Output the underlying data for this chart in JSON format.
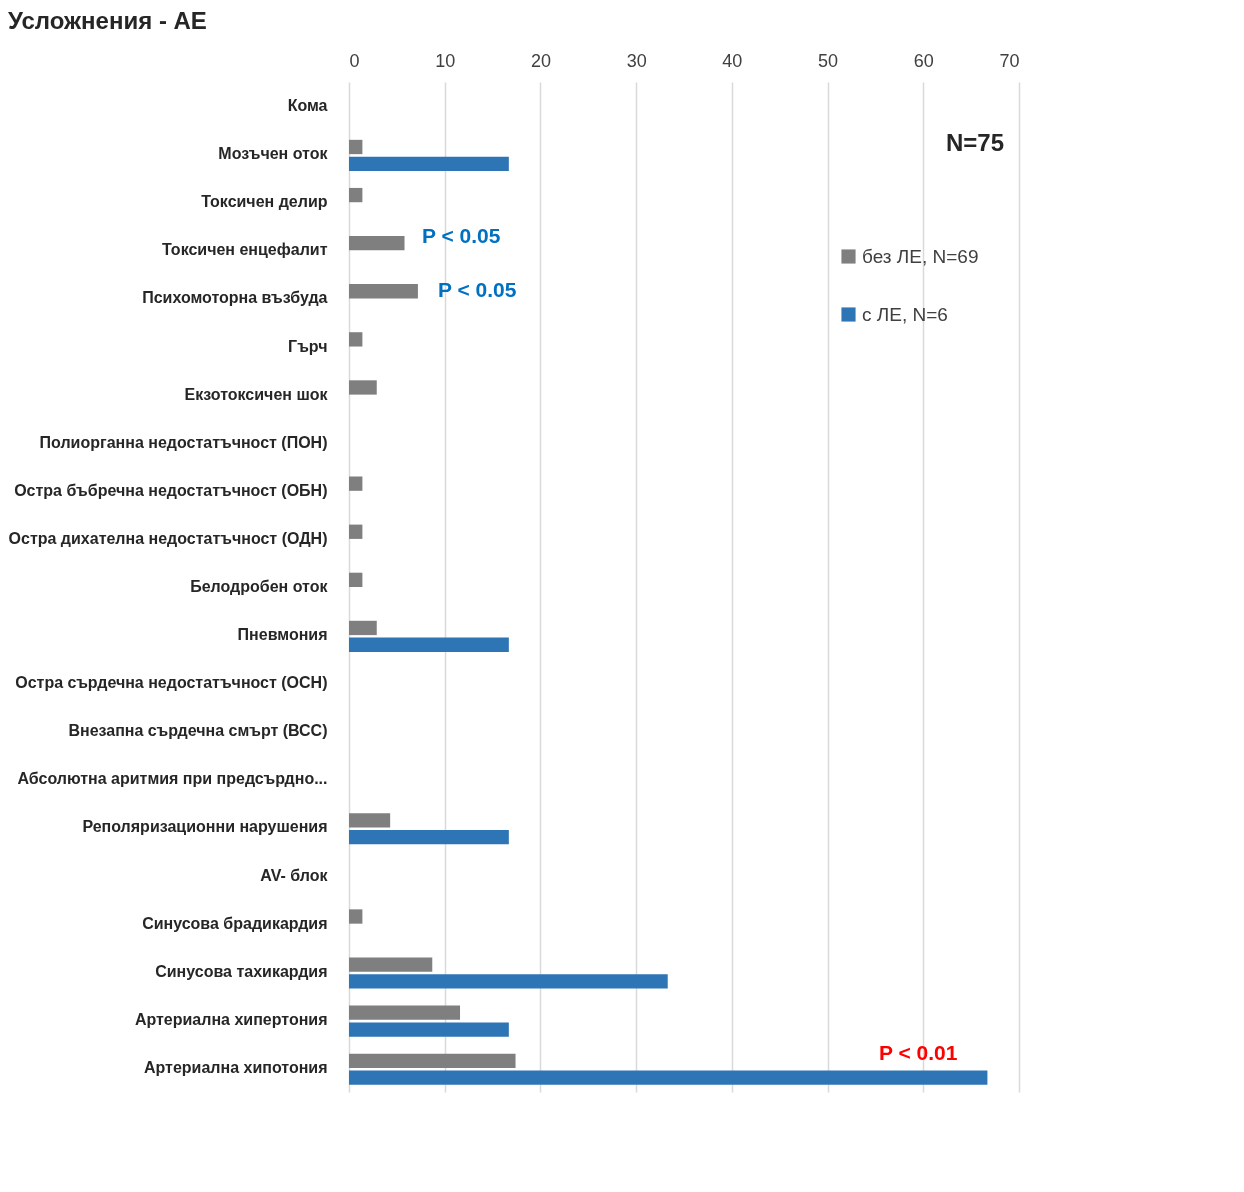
{
  "chart_data": {
    "type": "bar",
    "orientation": "horizontal",
    "title": "Усложнения - АЕ",
    "categories": [
      "Кома",
      "Мозъчен оток",
      "Токсичен делир",
      "Токсичен енцефалит",
      "Психомоторна възбуда",
      "Гърч",
      "Екзотоксичен шок",
      "Полиорганна недостатъчност (ПОН)",
      "Остра бъбречна недостатъчност (ОБН)",
      "Остра дихателна недостатъчност (ОДН)",
      "Белодробен оток",
      "Пневмония",
      "Остра сърдечна недостатъчност (ОСН)",
      "Внезапна сърдечна смърт (ВСС)",
      "Абсолютна аритмия при предсърдно...",
      "Реполяризационни нарушения",
      "AV- блок",
      "Синусова брадикардия",
      "Синусова тахикардия",
      "Артериална хипертония",
      "Артериална хипотония"
    ],
    "series": [
      {
        "name": "без ЛЕ, N=69",
        "color": "#7f7f7f",
        "values": [
          0,
          1.4,
          1.4,
          5.8,
          7.2,
          1.4,
          2.9,
          0,
          1.4,
          1.4,
          1.4,
          2.9,
          0,
          0,
          0,
          4.3,
          0,
          1.4,
          8.7,
          11.6,
          17.4
        ]
      },
      {
        "name": "с ЛЕ, N=6",
        "color": "#2e75b6",
        "values": [
          0,
          16.7,
          0,
          0,
          0,
          0,
          0,
          0,
          0,
          0,
          0,
          16.7,
          0,
          0,
          0,
          16.7,
          0,
          0,
          33.3,
          16.7,
          66.7
        ]
      }
    ],
    "xlim": [
      0,
      70
    ],
    "xticks": [
      0,
      10,
      20,
      30,
      40,
      50,
      60,
      70
    ],
    "grid": "x",
    "legend": "right",
    "annotations": [
      "N=75",
      "P < 0.05",
      "P < 0.05",
      "P < 0.01"
    ]
  }
}
